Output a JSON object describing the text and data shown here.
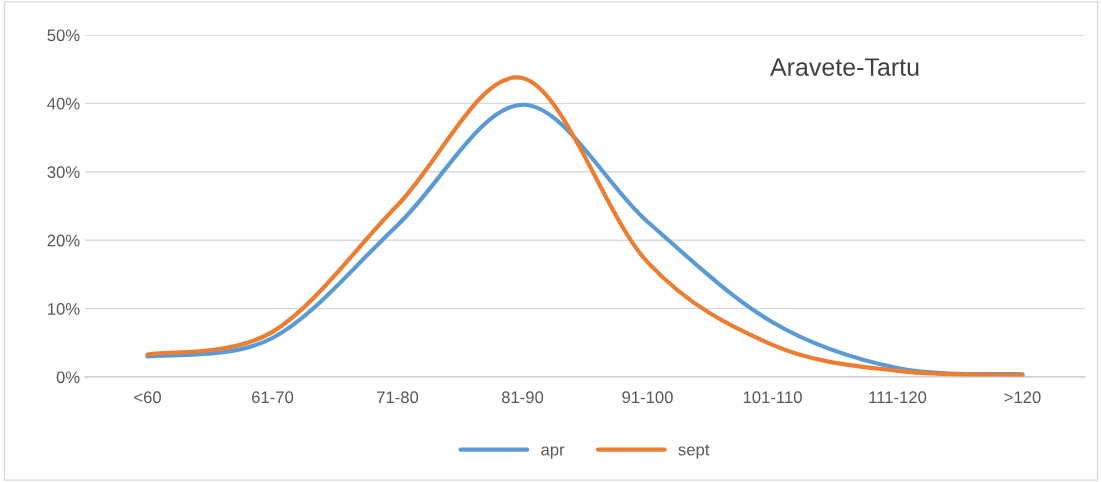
{
  "chart_data": {
    "type": "line",
    "title": "Aravete-Tartu",
    "categories": [
      "<60",
      "61-70",
      "71-80",
      "81-90",
      "91-100",
      "101-110",
      "111-120",
      ">120"
    ],
    "series": [
      {
        "name": "apr",
        "color": "#5b9bd5",
        "values": [
          3.0,
          5.7,
          22.2,
          39.8,
          22.7,
          8.0,
          1.3,
          0.4
        ]
      },
      {
        "name": "sept",
        "color": "#ed7d31",
        "values": [
          3.3,
          6.6,
          25.1,
          43.7,
          16.8,
          4.7,
          0.9,
          0.3
        ]
      }
    ],
    "ylim": [
      0,
      50
    ],
    "yticks": [
      {
        "value": 0,
        "label": "0%"
      },
      {
        "value": 10,
        "label": "10%"
      },
      {
        "value": 20,
        "label": "20%"
      },
      {
        "value": 30,
        "label": "30%"
      },
      {
        "value": 40,
        "label": "40%"
      },
      {
        "value": 50,
        "label": "50%"
      }
    ],
    "grid": "y",
    "legend": "bottom",
    "marker": "none",
    "line_style": "solid"
  }
}
